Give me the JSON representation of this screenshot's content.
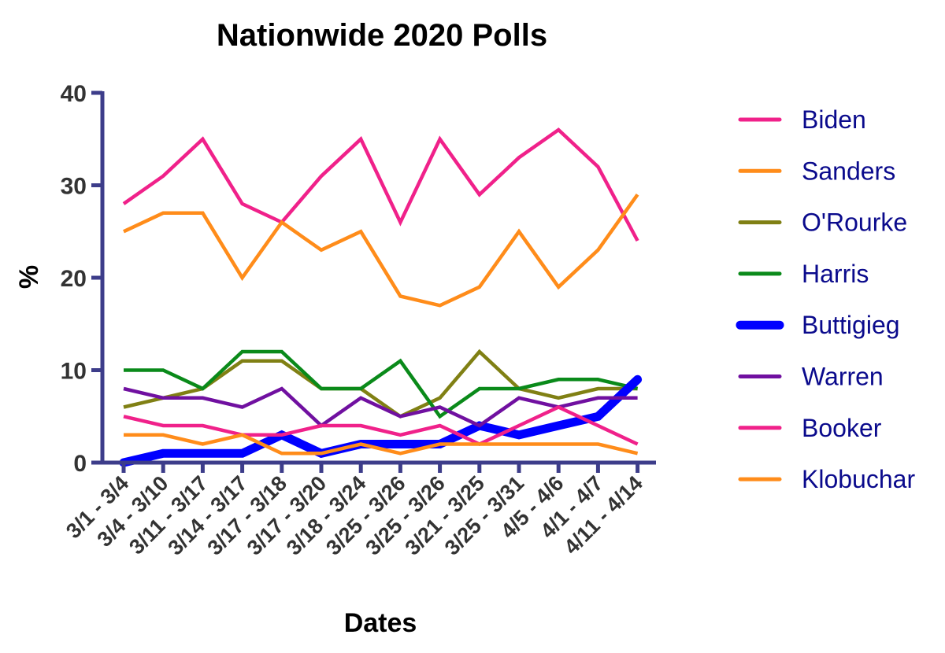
{
  "chart_data": {
    "type": "line",
    "title": "Nationwide 2020 Polls",
    "xlabel": "Dates",
    "ylabel": "%",
    "ylim": [
      0,
      40
    ],
    "yticks": [
      "0",
      "10",
      "20",
      "30",
      "40"
    ],
    "categories": [
      "3/1 - 3/4",
      "3/4 - 3/10",
      "3/11 - 3/17",
      "3/14 - 3/17",
      "3/17 - 3/18",
      "3/17 - 3/20",
      "3/18 - 3/24",
      "3/25 - 3/26",
      "3/25 - 3/26",
      "3/21 - 3/25",
      "3/25 - 3/31",
      "4/5 - 4/6",
      "4/1 - 4/7",
      "4/11 - 4/14"
    ],
    "grid": false,
    "legend_position": "right",
    "axis_color": "#3d3d8a",
    "legend_text_color": "#0a0a8c",
    "series": [
      {
        "name": "Biden",
        "color": "#f0218a",
        "values": [
          28,
          31,
          35,
          28,
          26,
          31,
          35,
          26,
          35,
          29,
          33,
          36,
          32,
          24
        ]
      },
      {
        "name": "Sanders",
        "color": "#ff8c1a",
        "values": [
          25,
          27,
          27,
          20,
          26,
          23,
          25,
          18,
          17,
          19,
          25,
          19,
          23,
          29
        ]
      },
      {
        "name": "O'Rourke",
        "color": "#808014",
        "values": [
          6,
          7,
          8,
          11,
          11,
          8,
          8,
          5,
          7,
          12,
          8,
          7,
          8,
          8
        ]
      },
      {
        "name": "Harris",
        "color": "#0a8a1a",
        "values": [
          10,
          10,
          8,
          12,
          12,
          8,
          8,
          11,
          5,
          8,
          8,
          9,
          9,
          8
        ]
      },
      {
        "name": "Buttigieg",
        "color": "#0000ff",
        "values": [
          0,
          1,
          1,
          1,
          3,
          1,
          2,
          2,
          2,
          4,
          3,
          4,
          5,
          9
        ]
      },
      {
        "name": "Warren",
        "color": "#7010a0",
        "values": [
          8,
          7,
          7,
          6,
          8,
          4,
          7,
          5,
          6,
          4,
          7,
          6,
          7,
          7
        ]
      },
      {
        "name": "Booker",
        "color": "#f0218a",
        "values": [
          5,
          4,
          4,
          3,
          3,
          4,
          4,
          3,
          4,
          2,
          4,
          6,
          4,
          2
        ]
      },
      {
        "name": "Klobuchar",
        "color": "#ff8c1a",
        "values": [
          3,
          3,
          2,
          3,
          1,
          1,
          2,
          1,
          2,
          2,
          2,
          2,
          2,
          1
        ]
      }
    ]
  }
}
